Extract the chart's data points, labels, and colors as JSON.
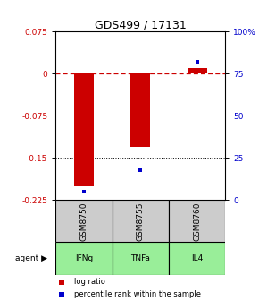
{
  "title": "GDS499 / 17131",
  "samples": [
    "GSM8750",
    "GSM8755",
    "GSM8760"
  ],
  "agents": [
    "IFNg",
    "TNFa",
    "IL4"
  ],
  "log_ratios": [
    -0.2,
    -0.13,
    0.01
  ],
  "percentile_ranks": [
    5,
    18,
    82
  ],
  "ylim_left": [
    -0.225,
    0.075
  ],
  "ylim_right": [
    0,
    100
  ],
  "yticks_left": [
    0.075,
    0,
    -0.075,
    -0.15,
    -0.225
  ],
  "yticks_right": [
    100,
    75,
    50,
    25,
    0
  ],
  "bar_color": "#cc0000",
  "pct_color": "#0000cc",
  "sample_bg": "#cccccc",
  "agent_bg": "#99ee99",
  "dotted_lines": [
    -0.075,
    -0.15
  ],
  "bar_width": 0.35,
  "title_fontsize": 9,
  "tick_fontsize": 6.5,
  "label_fontsize": 6.5,
  "legend_fontsize": 6,
  "agent_label_fontsize": 6.5
}
